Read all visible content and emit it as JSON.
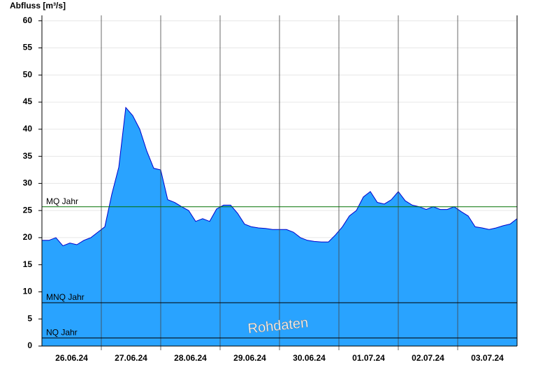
{
  "chart_data": {
    "type": "area",
    "y_label": "Abfluss [m³/s]",
    "days": [
      "26.06.24",
      "27.06.24",
      "28.06.24",
      "29.06.24",
      "30.06.24",
      "01.07.24",
      "02.07.24",
      "03.07.24"
    ],
    "values": [
      19.5,
      19.5,
      20,
      18.5,
      19,
      18.7,
      19.5,
      20,
      21,
      22,
      28,
      33,
      44,
      42.5,
      40,
      36,
      32.8,
      32.5,
      27,
      26.5,
      25.7,
      25,
      23,
      23.5,
      23,
      25.3,
      26,
      26,
      24.5,
      22.5,
      22,
      21.8,
      21.7,
      21.5,
      21.5,
      21.5,
      21,
      20,
      19.5,
      19.3,
      19.2,
      19.2,
      20.5,
      22,
      24,
      25,
      27.5,
      28.5,
      26.5,
      26.2,
      27,
      28.5,
      26.8,
      26,
      25.7,
      25.2,
      25.7,
      25.2,
      25.2,
      25.7,
      24.8,
      24,
      22,
      21.8,
      21.5,
      21.8,
      22.2,
      22.5,
      23.5
    ],
    "color": "#29a3ff",
    "line_color": "#0000cc",
    "ylim": [
      0,
      61
    ],
    "yticks": [
      0,
      5,
      10,
      15,
      20,
      25,
      30,
      35,
      40,
      45,
      50,
      55,
      60
    ],
    "grid": true,
    "reference_lines": [
      {
        "name": "MQ Jahr",
        "value": 25.7,
        "color": "#007000"
      },
      {
        "name": "MNQ Jahr",
        "value": 8,
        "color": "#000000"
      },
      {
        "name": "NQ Jahr",
        "value": 1.5,
        "color": "#000000"
      }
    ],
    "watermark": "Rohdaten"
  }
}
